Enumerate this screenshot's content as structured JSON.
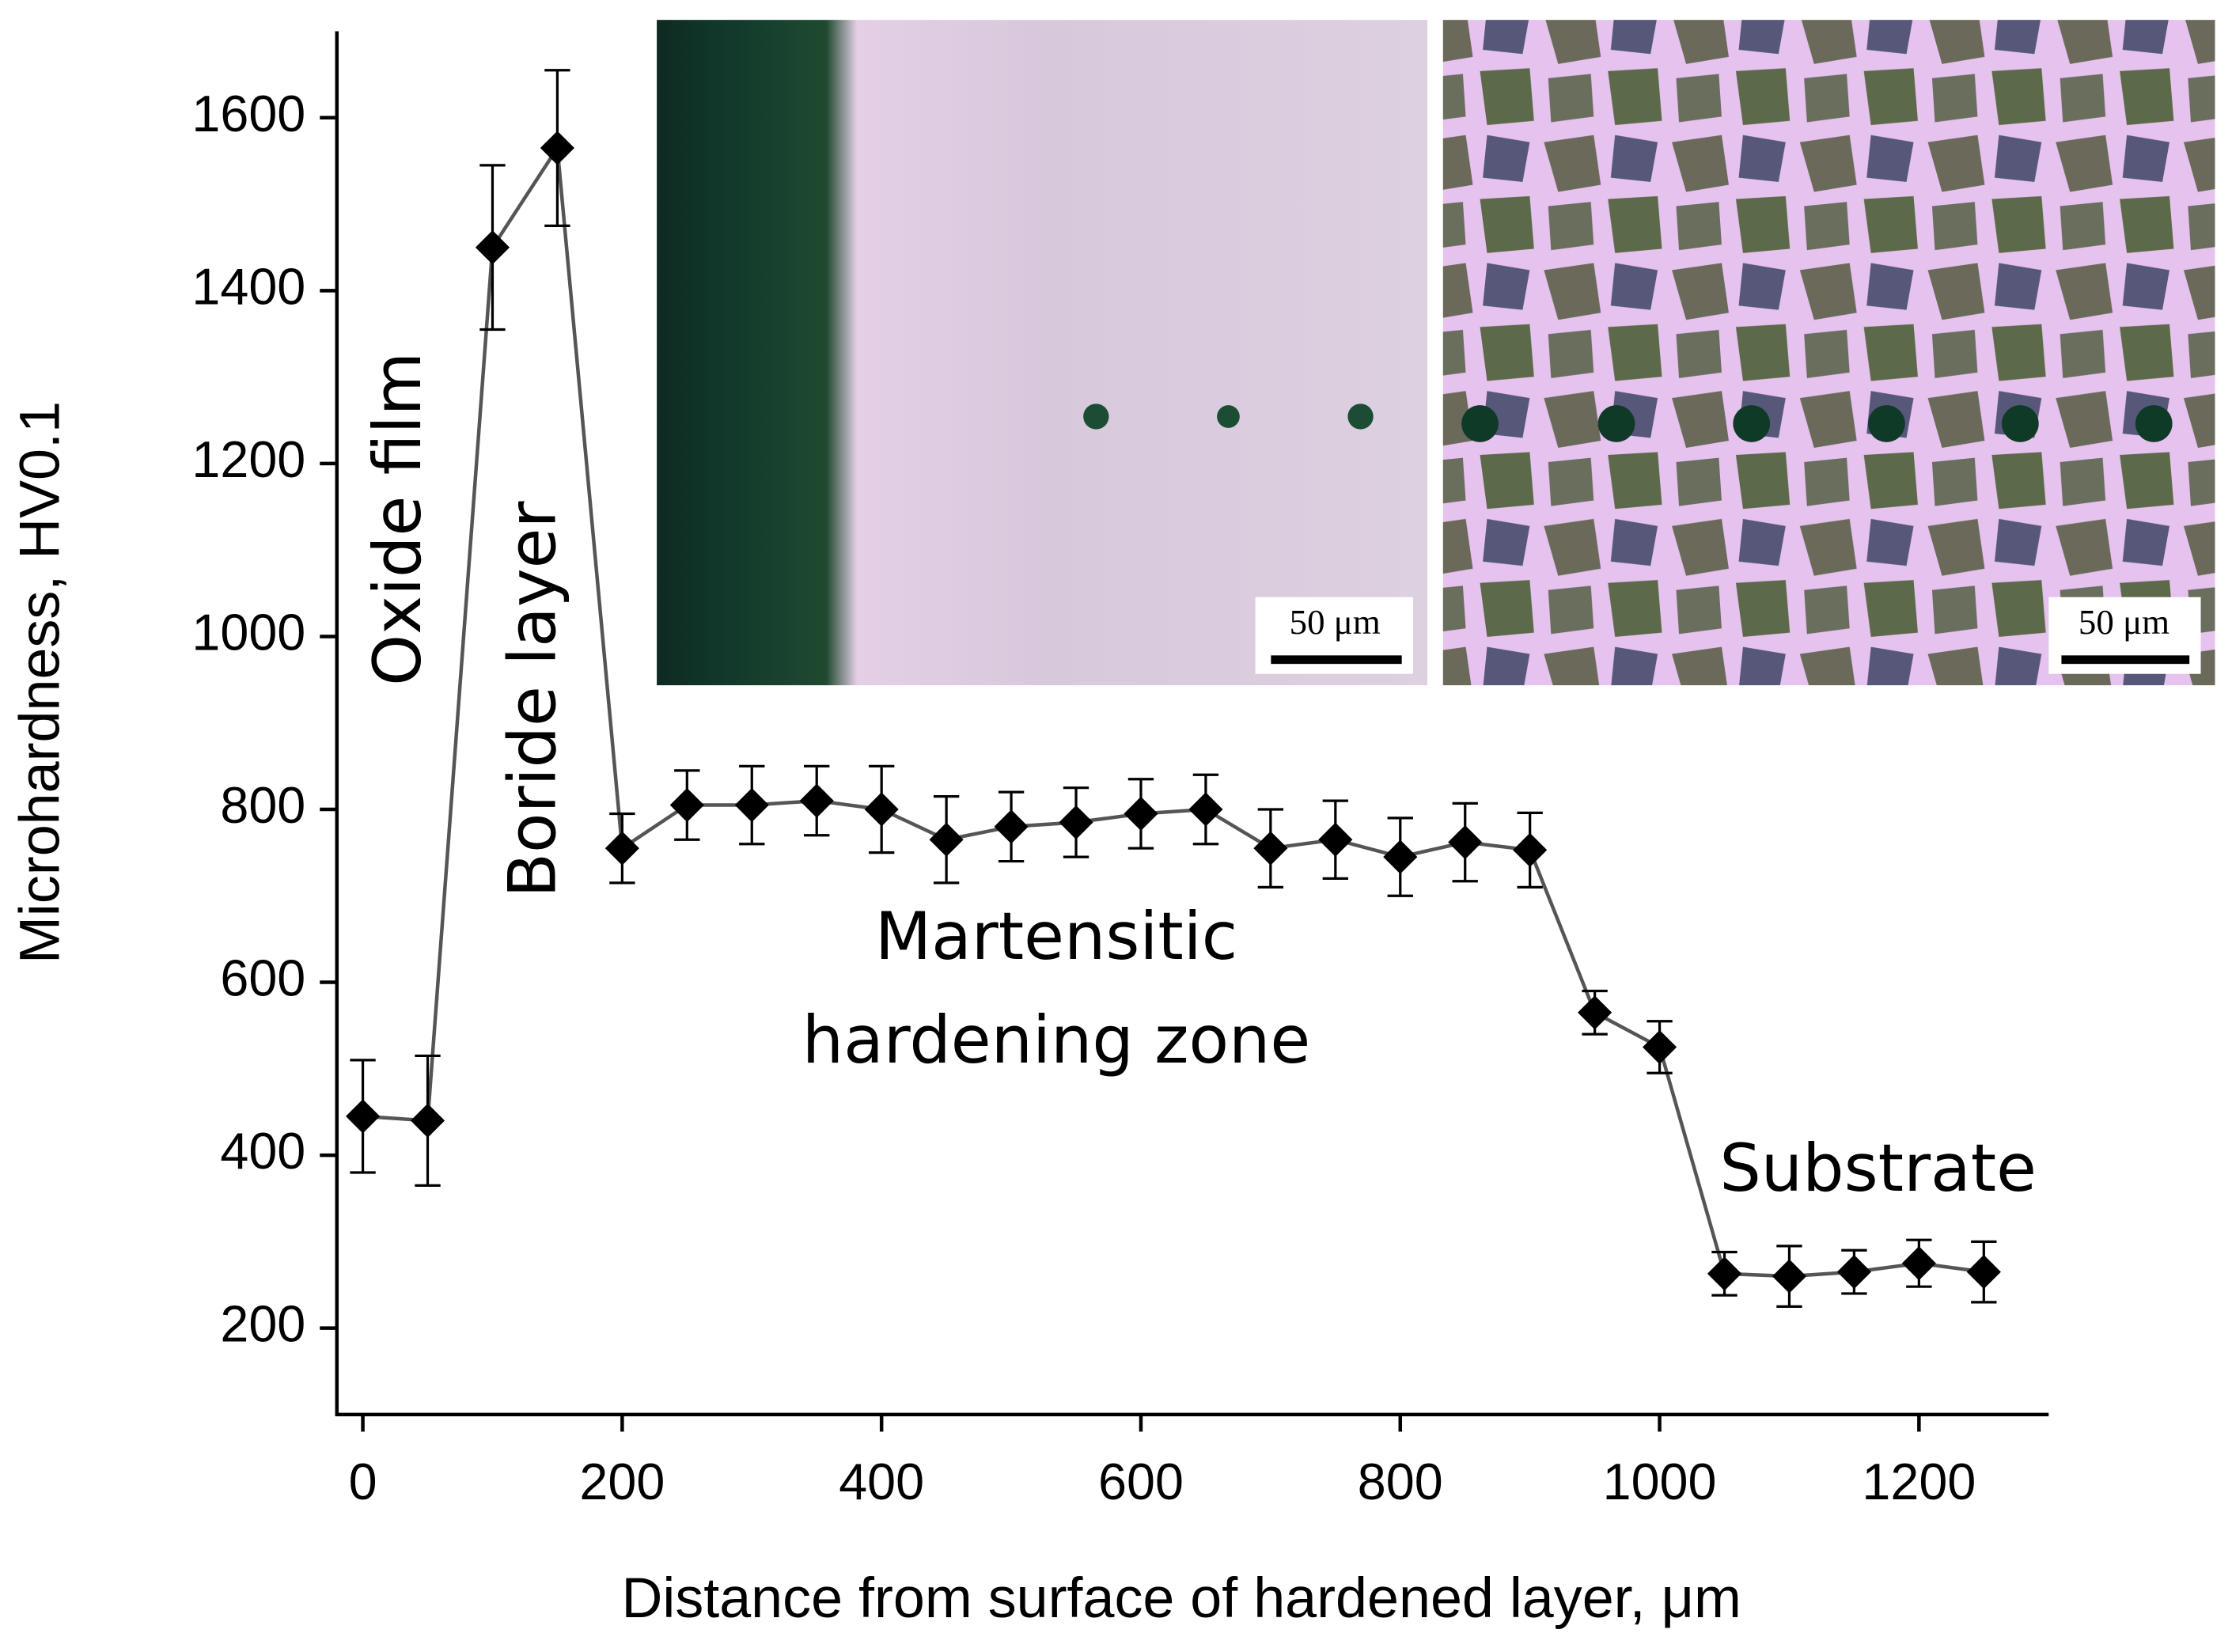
{
  "chart_data": {
    "type": "line",
    "x": [
      0,
      50,
      100,
      150,
      200,
      250,
      300,
      350,
      400,
      450,
      500,
      550,
      600,
      650,
      700,
      750,
      800,
      850,
      900,
      950,
      1000,
      1050,
      1100,
      1150,
      1200,
      1250
    ],
    "values": [
      445,
      440,
      1450,
      1565,
      755,
      805,
      805,
      810,
      800,
      765,
      780,
      785,
      795,
      800,
      755,
      765,
      745,
      762,
      753,
      565,
      525,
      263,
      260,
      265,
      275,
      265
    ],
    "errors": [
      65,
      75,
      95,
      90,
      40,
      40,
      45,
      40,
      50,
      50,
      40,
      40,
      40,
      40,
      45,
      45,
      45,
      45,
      43,
      25,
      30,
      25,
      35,
      25,
      27,
      35
    ],
    "color": "#000000",
    "line_color": "#555555",
    "xlim": [
      -20,
      1300
    ],
    "xticks": [
      0,
      200,
      400,
      600,
      800,
      1000,
      1200
    ],
    "ylim": [
      100,
      1700
    ],
    "yticks": [
      200,
      400,
      600,
      800,
      1000,
      1200,
      1400,
      1600
    ],
    "x_label": "Distance from surface of hardened layer, μm",
    "y_label": "Microhardness, HV0.1",
    "annotations": [
      "Oxide film",
      "Boride layer",
      "Martensitic",
      "hardening zone",
      "Substrate"
    ],
    "scale_bar_labels": [
      "50 μm",
      "50 μm"
    ]
  }
}
